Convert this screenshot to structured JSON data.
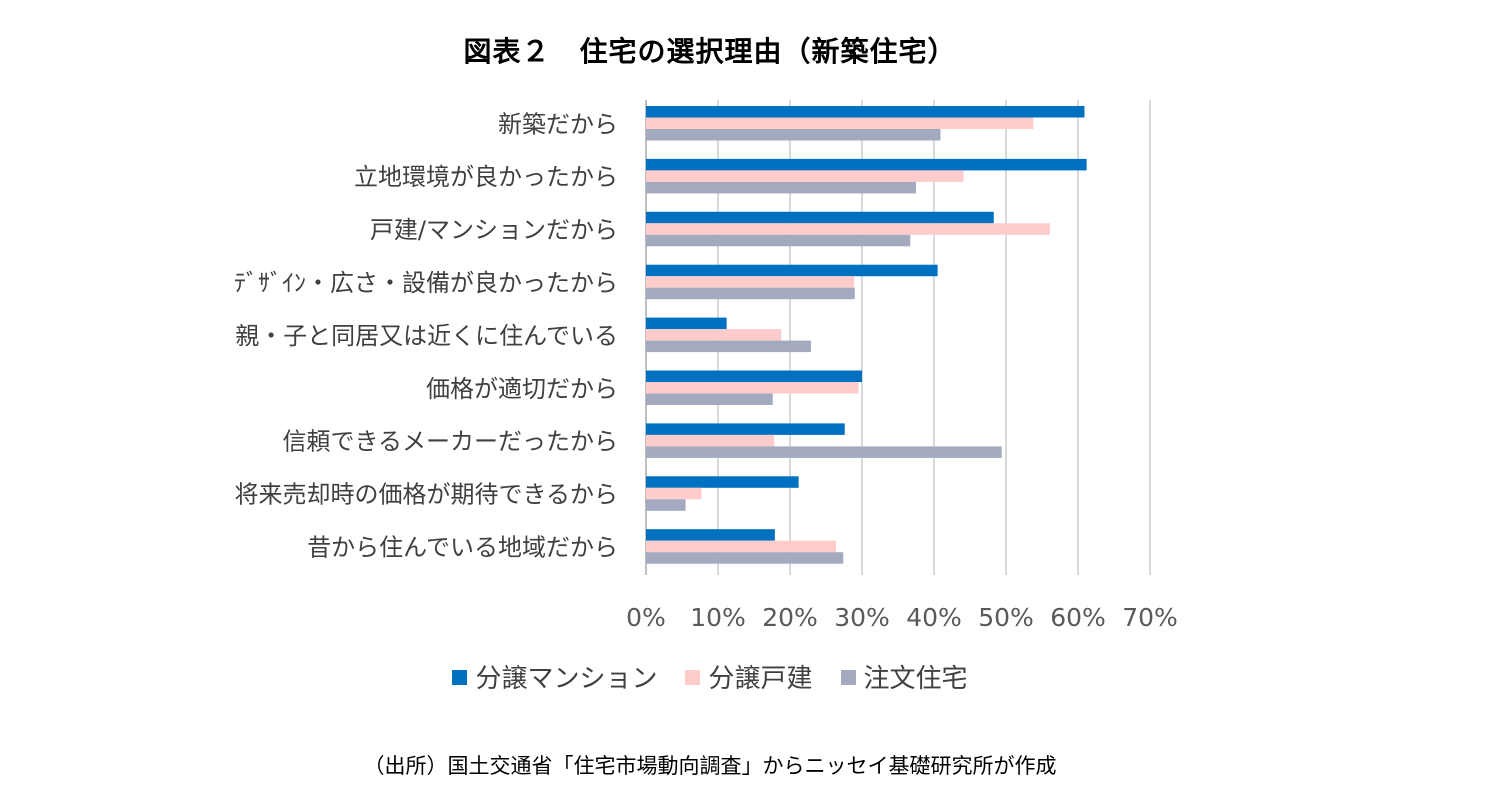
{
  "chart_data": {
    "type": "bar",
    "orientation": "horizontal",
    "title": "図表２　住宅の選択理由（新築住宅）",
    "categories": [
      "新築だから",
      "立地環境が良かったから",
      "戸建/マンションだから",
      "ﾃﾞｻﾞｲﾝ・広さ・設備が良かったから",
      "親・子と同居又は近くに住んでいる",
      "価格が適切だから",
      "信頼できるメーカーだったから",
      "将来売却時の価格が期待できるから",
      "昔から住んでいる地域だから"
    ],
    "series": [
      {
        "name": "分譲マンション",
        "color": "#0070C0",
        "values": [
          60.9,
          61.2,
          48.3,
          40.5,
          11.2,
          30.0,
          27.6,
          21.2,
          17.9
        ]
      },
      {
        "name": "分譲戸建",
        "color": "#FFCCCC",
        "values": [
          53.8,
          44.1,
          56.1,
          28.9,
          18.8,
          29.5,
          17.8,
          7.7,
          26.4
        ]
      },
      {
        "name": "注文住宅",
        "color": "#A3AAC0",
        "values": [
          40.9,
          37.5,
          36.7,
          29.0,
          22.9,
          17.6,
          49.4,
          5.5,
          27.4
        ]
      }
    ],
    "xlim": [
      0,
      70
    ],
    "x_ticks": [
      "0%",
      "10%",
      "20%",
      "30%",
      "40%",
      "50%",
      "60%",
      "70%"
    ],
    "grid": true,
    "legend_position": "bottom",
    "xlabel": "",
    "ylabel": ""
  },
  "source_note": "（出所）国土交通省「住宅市場動向調査」からニッセイ基礎研究所が作成"
}
